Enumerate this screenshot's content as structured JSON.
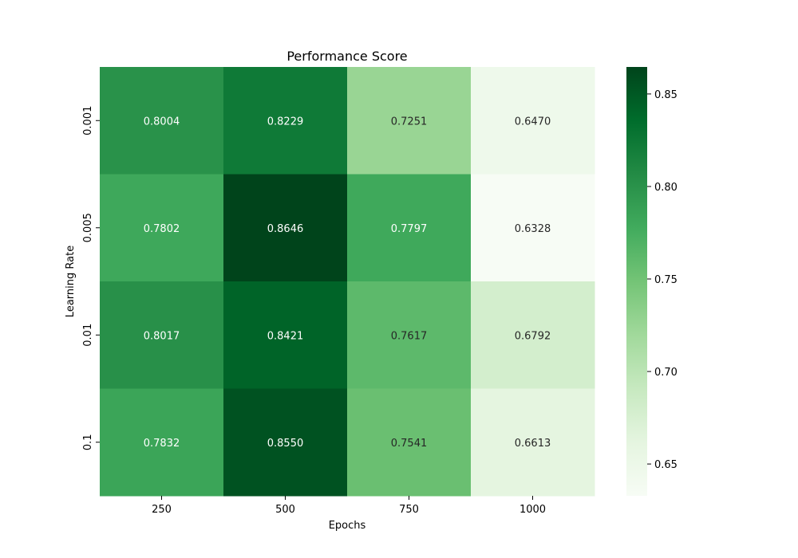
{
  "chart_data": {
    "type": "heatmap",
    "title": "Performance Score",
    "xlabel": "Epochs",
    "ylabel": "Learning Rate",
    "x_categories": [
      "250",
      "500",
      "750",
      "1000"
    ],
    "y_categories": [
      "0.001",
      "0.005",
      "0.01",
      "0.1"
    ],
    "values": [
      [
        0.8004,
        0.8229,
        0.7251,
        0.647
      ],
      [
        0.7802,
        0.8646,
        0.7797,
        0.6328
      ],
      [
        0.8017,
        0.8421,
        0.7617,
        0.6792
      ],
      [
        0.7832,
        0.855,
        0.7541,
        0.6613
      ]
    ],
    "colormap": "Greens",
    "vmin": 0.6328,
    "vmax": 0.8646,
    "colorbar_ticks": [
      0.65,
      0.7,
      0.75,
      0.8,
      0.85
    ],
    "colorbar_tick_labels": [
      "0.65",
      "0.70",
      "0.75",
      "0.80",
      "0.85"
    ],
    "value_format": "4 decimals",
    "grid": false,
    "colorbar_placement": "right"
  }
}
